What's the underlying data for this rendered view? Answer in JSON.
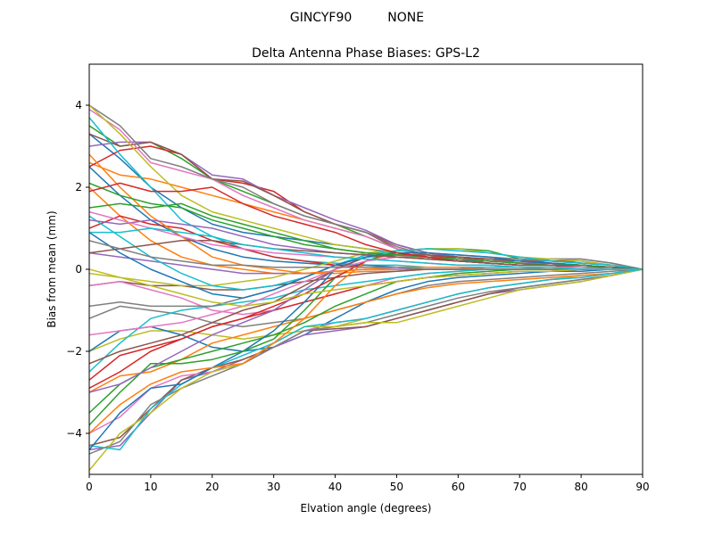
{
  "chart_data": {
    "type": "line",
    "suptitle": "GINCYF90         NONE",
    "title": "Delta Antenna Phase Biases: GPS-L2",
    "xlabel": "Elvation angle (degrees)",
    "ylabel": "Bias from mean (mm)",
    "xlim": [
      0,
      90
    ],
    "ylim": [
      -5,
      5
    ],
    "xticks": [
      0,
      10,
      20,
      30,
      40,
      50,
      60,
      70,
      80,
      90
    ],
    "yticks": [
      -4,
      -2,
      0,
      2,
      4
    ],
    "grid": false,
    "legend": "none",
    "x": [
      0,
      5,
      10,
      15,
      20,
      25,
      30,
      35,
      40,
      45,
      50,
      55,
      60,
      65,
      70,
      75,
      80,
      85,
      90
    ],
    "series": [
      {
        "color": "#1f77b4",
        "values": [
          3.3,
          2.7,
          2.0,
          1.5,
          1.1,
          0.9,
          0.8,
          0.7,
          0.6,
          0.5,
          0.4,
          0.3,
          0.2,
          0.2,
          0.15,
          0.1,
          0.1,
          0.05,
          0.0
        ]
      },
      {
        "color": "#ff7f0e",
        "values": [
          2.6,
          2.3,
          2.2,
          2.0,
          1.8,
          1.6,
          1.4,
          1.2,
          1.0,
          0.8,
          0.5,
          0.3,
          0.2,
          0.15,
          0.1,
          0.1,
          0.05,
          0.05,
          0.0
        ]
      },
      {
        "color": "#2ca02c",
        "values": [
          3.5,
          3.0,
          3.1,
          2.7,
          2.2,
          1.9,
          1.6,
          1.3,
          1.1,
          0.8,
          0.5,
          0.3,
          0.2,
          0.15,
          0.1,
          0.1,
          0.05,
          0.05,
          0.0
        ]
      },
      {
        "color": "#d62728",
        "values": [
          2.5,
          2.9,
          3.0,
          2.8,
          2.2,
          2.1,
          1.9,
          1.4,
          1.1,
          0.9,
          0.6,
          0.4,
          0.3,
          0.2,
          0.15,
          0.15,
          0.1,
          0.05,
          0.0
        ]
      },
      {
        "color": "#9467bd",
        "values": [
          3.0,
          3.1,
          3.1,
          2.8,
          2.3,
          2.2,
          1.8,
          1.5,
          1.2,
          0.95,
          0.6,
          0.4,
          0.3,
          0.25,
          0.2,
          0.25,
          0.25,
          0.15,
          0.0
        ]
      },
      {
        "color": "#8c564b",
        "values": [
          3.3,
          3.0,
          3.1,
          2.8,
          2.2,
          2.15,
          1.8,
          1.4,
          1.1,
          0.9,
          0.5,
          0.35,
          0.25,
          0.2,
          0.2,
          0.2,
          0.2,
          0.1,
          0.0
        ]
      },
      {
        "color": "#e377c2",
        "values": [
          3.9,
          3.4,
          2.6,
          2.4,
          2.2,
          1.8,
          1.5,
          1.2,
          1.0,
          0.8,
          0.5,
          0.3,
          0.2,
          0.15,
          0.1,
          0.1,
          0.05,
          0.05,
          0.0
        ]
      },
      {
        "color": "#7f7f7f",
        "values": [
          4.0,
          3.5,
          2.7,
          2.5,
          2.2,
          2.0,
          1.6,
          1.3,
          1.1,
          0.9,
          0.55,
          0.35,
          0.25,
          0.2,
          0.2,
          0.25,
          0.25,
          0.15,
          0.0
        ]
      },
      {
        "color": "#bcbd22",
        "values": [
          4.0,
          3.3,
          2.5,
          1.8,
          1.4,
          1.2,
          1.0,
          0.8,
          0.6,
          0.5,
          0.35,
          0.25,
          0.2,
          0.15,
          0.1,
          0.1,
          0.05,
          0.05,
          0.0
        ]
      },
      {
        "color": "#17becf",
        "values": [
          3.7,
          2.8,
          2.0,
          1.2,
          0.8,
          0.5,
          0.3,
          0.2,
          0.15,
          0.1,
          0.1,
          0.05,
          0.05,
          0.05,
          0.05,
          0.0,
          0.0,
          0.0,
          0.0
        ]
      },
      {
        "color": "#1f77b4",
        "values": [
          2.5,
          1.8,
          1.2,
          0.8,
          0.5,
          0.3,
          0.2,
          0.15,
          0.1,
          0.1,
          0.05,
          0.05,
          0.05,
          0.0,
          0.0,
          0.0,
          0.0,
          0.0,
          0.0
        ]
      },
      {
        "color": "#ff7f0e",
        "values": [
          2.0,
          1.3,
          0.7,
          0.3,
          0.1,
          0.0,
          -0.1,
          -0.1,
          -0.1,
          -0.05,
          -0.05,
          0.0,
          0.0,
          0.0,
          0.0,
          0.0,
          0.0,
          0.0,
          0.0
        ]
      },
      {
        "color": "#2ca02c",
        "values": [
          1.5,
          1.6,
          1.5,
          1.6,
          1.3,
          1.1,
          0.9,
          0.7,
          0.5,
          0.4,
          0.3,
          0.25,
          0.2,
          0.15,
          0.1,
          0.1,
          0.05,
          0.05,
          0.0
        ]
      },
      {
        "color": "#d62728",
        "values": [
          1.0,
          1.3,
          1.1,
          1.0,
          0.7,
          0.5,
          0.3,
          0.2,
          0.1,
          0.05,
          0.05,
          0.0,
          0.0,
          0.0,
          0.0,
          0.0,
          0.0,
          0.0,
          0.0
        ]
      },
      {
        "color": "#9467bd",
        "values": [
          0.4,
          0.3,
          0.2,
          0.1,
          0.0,
          -0.1,
          -0.1,
          -0.1,
          -0.05,
          0.0,
          0.0,
          0.0,
          0.0,
          0.0,
          0.0,
          0.0,
          0.0,
          0.0,
          0.0
        ]
      },
      {
        "color": "#8c564b",
        "values": [
          -0.4,
          -0.3,
          -0.4,
          -0.4,
          -0.5,
          -0.5,
          -0.4,
          -0.3,
          -0.2,
          -0.1,
          -0.05,
          0.0,
          0.0,
          0.0,
          0.0,
          0.0,
          0.0,
          0.0,
          0.0
        ]
      },
      {
        "color": "#e377c2",
        "values": [
          -0.4,
          -0.3,
          -0.5,
          -0.7,
          -1.0,
          -1.1,
          -1.0,
          -0.8,
          -0.6,
          -0.4,
          -0.2,
          -0.1,
          -0.05,
          0.0,
          0.0,
          0.0,
          0.0,
          0.0,
          0.0
        ]
      },
      {
        "color": "#7f7f7f",
        "values": [
          -1.2,
          -0.9,
          -1.0,
          -1.1,
          -1.3,
          -1.4,
          -1.3,
          -1.2,
          -1.0,
          -0.8,
          -0.6,
          -0.4,
          -0.3,
          -0.25,
          -0.2,
          -0.15,
          -0.1,
          -0.05,
          0.0
        ]
      },
      {
        "color": "#bcbd22",
        "values": [
          -2.0,
          -1.7,
          -1.5,
          -1.5,
          -1.6,
          -1.7,
          -1.6,
          -1.5,
          -1.4,
          -1.2,
          -1.0,
          -0.8,
          -0.6,
          -0.45,
          -0.35,
          -0.25,
          -0.15,
          -0.1,
          0.0
        ]
      },
      {
        "color": "#17becf",
        "values": [
          -2.5,
          -1.8,
          -1.2,
          -1.0,
          -0.9,
          -0.8,
          -0.7,
          -0.5,
          -0.4,
          -0.3,
          -0.2,
          -0.1,
          -0.05,
          0.0,
          0.0,
          0.0,
          0.0,
          0.0,
          0.0
        ]
      },
      {
        "color": "#1f77b4",
        "values": [
          -2.0,
          -1.5,
          -1.4,
          -1.6,
          -1.9,
          -2.0,
          -1.9,
          -1.6,
          -1.2,
          -0.8,
          -0.5,
          -0.3,
          -0.2,
          -0.15,
          -0.1,
          -0.05,
          -0.05,
          0.0,
          0.0
        ]
      },
      {
        "color": "#ff7f0e",
        "values": [
          -3.0,
          -2.6,
          -2.5,
          -2.2,
          -1.8,
          -1.6,
          -1.4,
          -1.2,
          -1.0,
          -0.8,
          -0.6,
          -0.45,
          -0.35,
          -0.3,
          -0.25,
          -0.2,
          -0.15,
          -0.1,
          0.0
        ]
      },
      {
        "color": "#2ca02c",
        "values": [
          -3.5,
          -2.8,
          -2.4,
          -2.2,
          -2.0,
          -1.8,
          -1.6,
          -1.3,
          -0.9,
          -0.6,
          -0.3,
          -0.2,
          -0.1,
          -0.05,
          0.0,
          0.0,
          0.0,
          0.0,
          0.0
        ]
      },
      {
        "color": "#d62728",
        "values": [
          -2.9,
          -2.5,
          -2.0,
          -1.7,
          -1.4,
          -1.2,
          -1.0,
          -0.8,
          -0.6,
          -0.4,
          -0.3,
          -0.2,
          -0.15,
          -0.1,
          -0.05,
          -0.05,
          0.0,
          0.0,
          0.0
        ]
      },
      {
        "color": "#9467bd",
        "values": [
          -4.4,
          -4.3,
          -3.5,
          -2.7,
          -2.5,
          -2.2,
          -1.9,
          -1.6,
          -1.5,
          -1.4,
          -1.2,
          -1.0,
          -0.8,
          -0.6,
          -0.5,
          -0.4,
          -0.3,
          -0.15,
          0.0
        ]
      },
      {
        "color": "#8c564b",
        "values": [
          -4.3,
          -4.1,
          -3.4,
          -2.7,
          -2.4,
          -2.2,
          -1.9,
          -1.5,
          -1.45,
          -1.4,
          -1.2,
          -1.0,
          -0.8,
          -0.6,
          -0.45,
          -0.35,
          -0.25,
          -0.15,
          0.0
        ]
      },
      {
        "color": "#e377c2",
        "values": [
          -4.0,
          -3.6,
          -2.9,
          -2.6,
          -2.5,
          -2.3,
          -1.9,
          -1.5,
          -1.3,
          -1.2,
          -1.0,
          -0.8,
          -0.6,
          -0.45,
          -0.35,
          -0.25,
          -0.2,
          -0.1,
          0.0
        ]
      },
      {
        "color": "#7f7f7f",
        "values": [
          -4.5,
          -4.2,
          -3.3,
          -2.9,
          -2.6,
          -2.3,
          -1.9,
          -1.5,
          -1.4,
          -1.3,
          -1.1,
          -0.9,
          -0.7,
          -0.55,
          -0.45,
          -0.35,
          -0.25,
          -0.15,
          0.0
        ]
      },
      {
        "color": "#bcbd22",
        "values": [
          -4.9,
          -4.0,
          -3.5,
          -2.9,
          -2.5,
          -2.3,
          -1.8,
          -1.4,
          -1.4,
          -1.3,
          -1.3,
          -1.1,
          -0.9,
          -0.7,
          -0.5,
          -0.4,
          -0.3,
          -0.15,
          0.0
        ]
      },
      {
        "color": "#17becf",
        "values": [
          -4.3,
          -4.4,
          -3.4,
          -2.8,
          -2.4,
          -2.1,
          -1.8,
          -1.4,
          -1.3,
          -1.2,
          -1.0,
          -0.8,
          -0.6,
          -0.45,
          -0.35,
          -0.25,
          -0.2,
          -0.1,
          0.0
        ]
      },
      {
        "color": "#1f77b4",
        "values": [
          -4.4,
          -3.5,
          -2.9,
          -2.8,
          -2.4,
          -2.0,
          -1.5,
          -0.8,
          0.0,
          0.3,
          0.4,
          0.3,
          0.25,
          0.2,
          0.15,
          0.15,
          0.1,
          0.05,
          0.0
        ]
      },
      {
        "color": "#ff7f0e",
        "values": [
          -4.0,
          -3.3,
          -2.8,
          -2.5,
          -2.4,
          -2.3,
          -1.8,
          -1.2,
          -0.4,
          0.2,
          0.4,
          0.3,
          0.25,
          0.2,
          0.15,
          0.1,
          0.1,
          0.05,
          0.0
        ]
      },
      {
        "color": "#2ca02c",
        "values": [
          -3.8,
          -3.0,
          -2.3,
          -2.3,
          -2.2,
          -2.0,
          -1.7,
          -1.0,
          -0.2,
          0.2,
          0.45,
          0.5,
          0.5,
          0.45,
          0.25,
          0.2,
          0.15,
          0.1,
          0.0
        ]
      },
      {
        "color": "#d62728",
        "values": [
          -2.7,
          -2.1,
          -1.9,
          -1.7,
          -1.4,
          -1.2,
          -0.9,
          -0.6,
          -0.2,
          0.2,
          0.3,
          0.3,
          0.3,
          0.25,
          0.2,
          0.15,
          0.1,
          0.05,
          0.0
        ]
      },
      {
        "color": "#9467bd",
        "values": [
          -3.0,
          -2.8,
          -2.4,
          -2.0,
          -1.6,
          -1.3,
          -1.0,
          -0.5,
          0.0,
          0.3,
          0.35,
          0.3,
          0.25,
          0.2,
          0.15,
          0.15,
          0.1,
          0.05,
          0.0
        ]
      },
      {
        "color": "#8c564b",
        "values": [
          -2.3,
          -2.0,
          -1.8,
          -1.6,
          -1.3,
          -1.0,
          -0.8,
          -0.4,
          0.0,
          0.3,
          0.35,
          0.35,
          0.3,
          0.25,
          0.2,
          0.15,
          0.1,
          0.05,
          0.0
        ]
      },
      {
        "color": "#e377c2",
        "values": [
          -1.6,
          -1.5,
          -1.4,
          -1.3,
          -1.1,
          -0.9,
          -0.6,
          -0.3,
          0.0,
          0.2,
          0.3,
          0.3,
          0.25,
          0.2,
          0.15,
          0.1,
          0.1,
          0.05,
          0.0
        ]
      },
      {
        "color": "#7f7f7f",
        "values": [
          -0.9,
          -0.8,
          -0.9,
          -0.9,
          -0.9,
          -0.7,
          -0.5,
          -0.2,
          0.1,
          0.3,
          0.4,
          0.4,
          0.35,
          0.3,
          0.25,
          0.2,
          0.15,
          0.1,
          0.0
        ]
      },
      {
        "color": "#bcbd22",
        "values": [
          -0.1,
          -0.2,
          -0.3,
          -0.4,
          -0.4,
          -0.3,
          -0.2,
          0.0,
          0.2,
          0.4,
          0.45,
          0.5,
          0.5,
          0.4,
          0.3,
          0.25,
          0.2,
          0.1,
          0.0
        ]
      },
      {
        "color": "#17becf",
        "values": [
          1.3,
          0.8,
          0.3,
          -0.1,
          -0.4,
          -0.5,
          -0.4,
          -0.2,
          0.1,
          0.35,
          0.45,
          0.5,
          0.45,
          0.4,
          0.3,
          0.2,
          0.15,
          0.1,
          0.0
        ]
      },
      {
        "color": "#1f77b4",
        "values": [
          0.9,
          0.4,
          0.0,
          -0.3,
          -0.6,
          -0.7,
          -0.5,
          -0.2,
          0.1,
          0.3,
          0.4,
          0.4,
          0.35,
          0.3,
          0.2,
          0.15,
          0.1,
          0.05,
          0.0
        ]
      },
      {
        "color": "#ff7f0e",
        "values": [
          2.8,
          2.0,
          1.3,
          0.8,
          0.3,
          0.1,
          0.0,
          -0.1,
          -0.05,
          0.0,
          0.05,
          0.05,
          0.05,
          0.0,
          0.0,
          0.0,
          0.0,
          0.0,
          0.0
        ]
      },
      {
        "color": "#2ca02c",
        "values": [
          2.1,
          1.8,
          1.6,
          1.5,
          1.2,
          1.0,
          0.8,
          0.6,
          0.5,
          0.4,
          0.35,
          0.3,
          0.25,
          0.2,
          0.15,
          0.1,
          0.1,
          0.05,
          0.0
        ]
      },
      {
        "color": "#d62728",
        "values": [
          1.9,
          2.1,
          1.9,
          1.9,
          2.0,
          1.6,
          1.3,
          1.1,
          0.9,
          0.6,
          0.4,
          0.3,
          0.2,
          0.15,
          0.1,
          0.1,
          0.05,
          0.05,
          0.0
        ]
      },
      {
        "color": "#9467bd",
        "values": [
          1.2,
          1.1,
          1.2,
          1.1,
          1.0,
          0.8,
          0.6,
          0.5,
          0.4,
          0.35,
          0.3,
          0.25,
          0.2,
          0.15,
          0.1,
          0.1,
          0.05,
          0.05,
          0.0
        ]
      },
      {
        "color": "#8c564b",
        "values": [
          0.4,
          0.5,
          0.6,
          0.7,
          0.7,
          0.6,
          0.5,
          0.45,
          0.4,
          0.35,
          0.3,
          0.25,
          0.2,
          0.15,
          0.1,
          0.1,
          0.05,
          0.05,
          0.0
        ]
      },
      {
        "color": "#e377c2",
        "values": [
          1.4,
          1.2,
          1.0,
          0.8,
          0.6,
          0.5,
          0.4,
          0.35,
          0.3,
          0.25,
          0.2,
          0.15,
          0.1,
          0.1,
          0.05,
          0.05,
          0.05,
          0.0,
          0.0
        ]
      },
      {
        "color": "#7f7f7f",
        "values": [
          0.7,
          0.5,
          0.3,
          0.2,
          0.1,
          0.1,
          0.05,
          0.05,
          0.05,
          0.05,
          0.05,
          0.0,
          0.0,
          0.0,
          0.0,
          0.0,
          0.0,
          0.0,
          0.0
        ]
      },
      {
        "color": "#bcbd22",
        "values": [
          0.0,
          -0.2,
          -0.4,
          -0.6,
          -0.8,
          -0.9,
          -0.8,
          -0.6,
          -0.5,
          -0.4,
          -0.3,
          -0.2,
          -0.15,
          -0.1,
          -0.05,
          -0.05,
          0.0,
          0.0,
          0.0
        ]
      },
      {
        "color": "#17becf",
        "values": [
          0.9,
          0.9,
          1.0,
          0.9,
          0.8,
          0.6,
          0.5,
          0.4,
          0.3,
          0.25,
          0.2,
          0.15,
          0.1,
          0.1,
          0.05,
          0.05,
          0.0,
          0.0,
          0.0
        ]
      }
    ]
  }
}
